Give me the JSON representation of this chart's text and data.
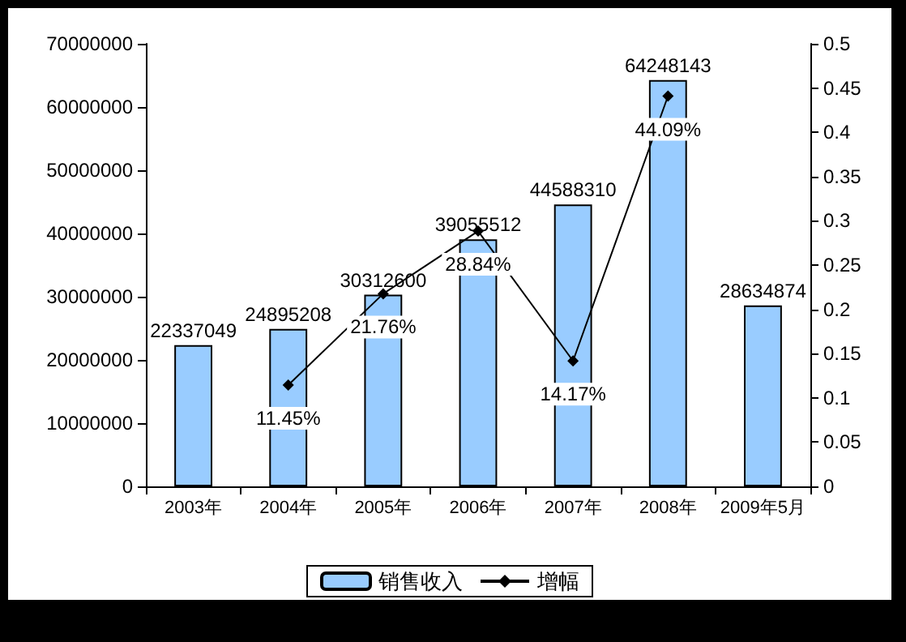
{
  "chart_data": {
    "type": "bar",
    "categories": [
      "2003年",
      "2004年",
      "2005年",
      "2006年",
      "2007年",
      "2008年",
      "2009年5月"
    ],
    "series": [
      {
        "name": "销售收入",
        "color": "#99ccff",
        "values": [
          22337049,
          24895208,
          30312600,
          39055512,
          44588310,
          64248143,
          28634874
        ],
        "value_labels": [
          "22337049",
          "24895208",
          "30312600",
          "39055512",
          "44588310",
          "64248143",
          "28634874"
        ]
      },
      {
        "name": "增幅",
        "type": "line",
        "axis": "y2",
        "color": "#000000",
        "marker": "diamond",
        "values": [
          null,
          0.1145,
          0.2176,
          0.2884,
          0.1417,
          0.4409,
          null
        ],
        "value_labels": [
          null,
          "11.45%",
          "21.76%",
          "28.84%",
          "14.17%",
          "44.09%",
          null
        ]
      }
    ],
    "ylim": [
      0,
      70000000
    ],
    "yticks": [
      0,
      10000000,
      20000000,
      30000000,
      40000000,
      50000000,
      60000000,
      70000000
    ],
    "y2lim": [
      0,
      0.5
    ],
    "y2ticks": [
      0,
      0.05,
      0.1,
      0.15,
      0.2,
      0.25,
      0.3,
      0.35,
      0.4,
      0.45,
      0.5
    ],
    "legend": "bottom",
    "grid": false
  }
}
